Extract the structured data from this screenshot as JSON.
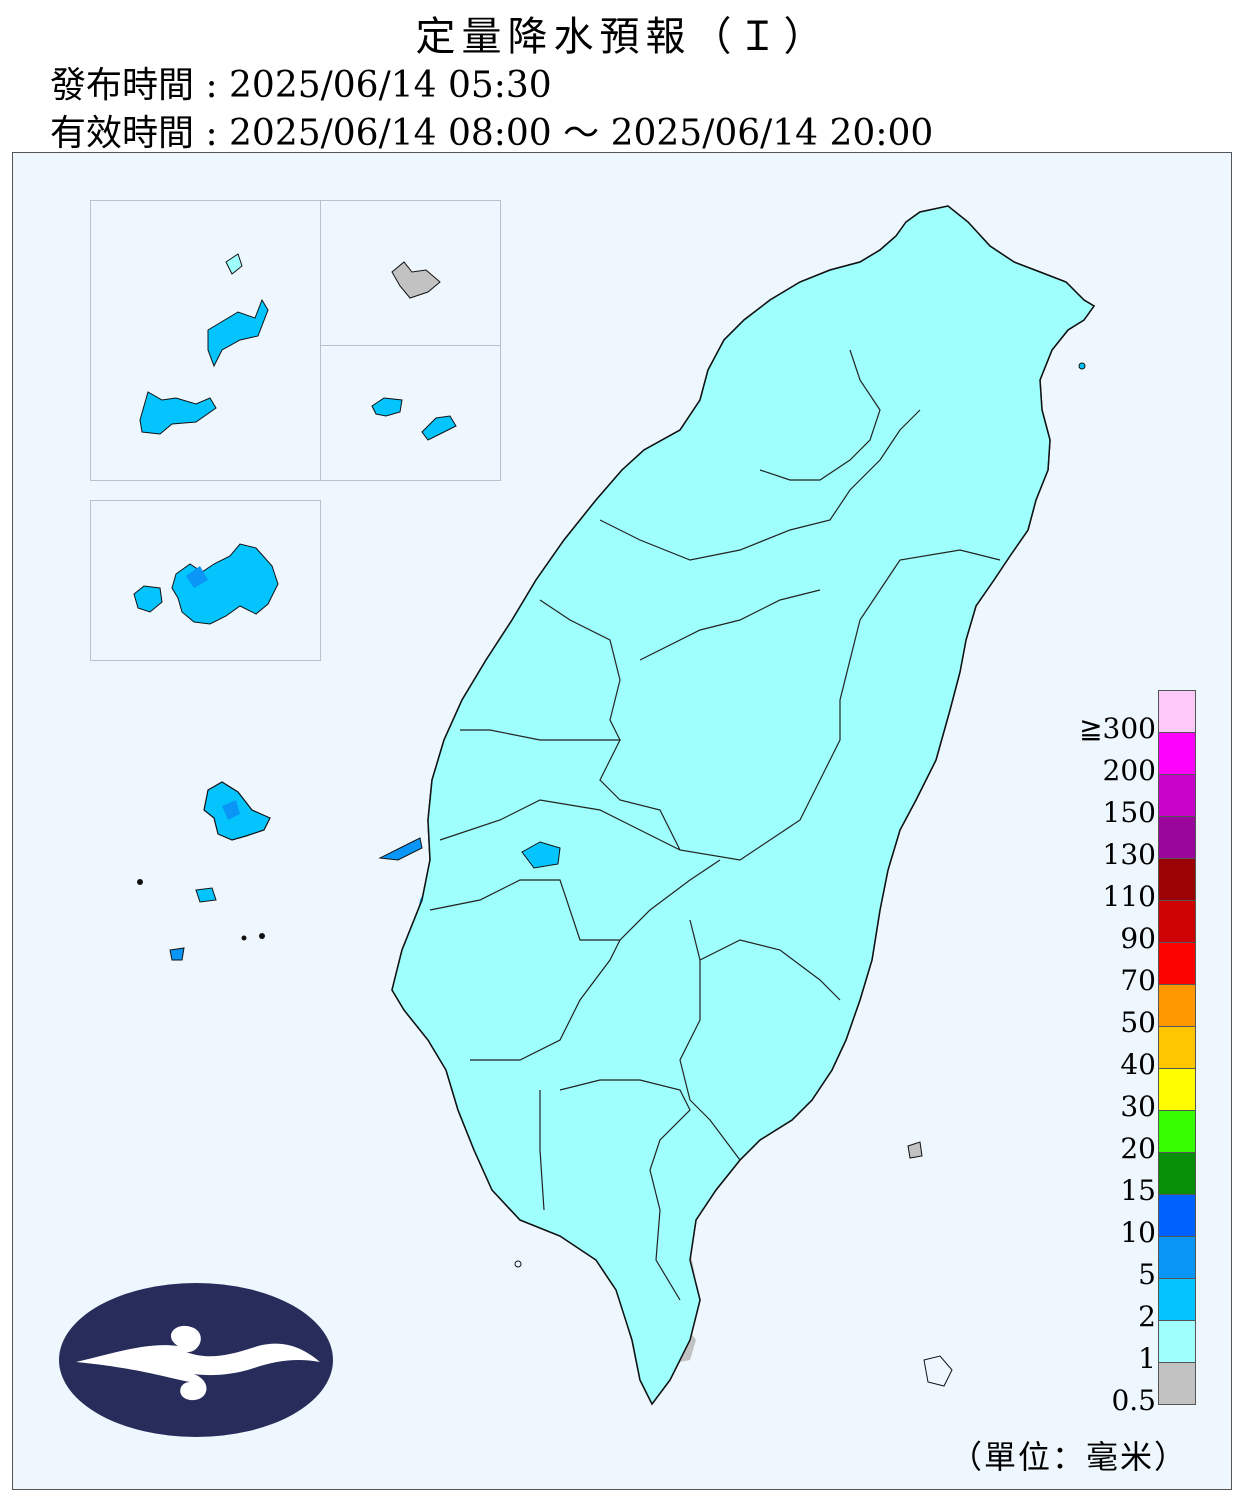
{
  "header": {
    "title": "定量降水預報（Ｉ）",
    "issued": "發布時間 : 2025/06/14 05:30",
    "valid": "有效時間 : 2025/06/14 08:00 ～ 2025/06/14 20:00"
  },
  "legend": {
    "unit": "（單位：毫米）",
    "labels": [
      "≧300",
      "200",
      "150",
      "130",
      "110",
      "90",
      "70",
      "50",
      "40",
      "30",
      "20",
      "15",
      "10",
      "5",
      "2",
      "1",
      "0.5"
    ],
    "colors": [
      "#fdc9f9",
      "#fd03fb",
      "#c803c9",
      "#9a0699",
      "#9b0202",
      "#ce0202",
      "#fd0300",
      "#fe9700",
      "#fec600",
      "#fffd00",
      "#35fe00",
      "#078f07",
      "#0062fe",
      "#0a96f6",
      "#03c4fd",
      "#9efffd",
      "#c2c2c2"
    ]
  },
  "regions": {
    "penghu": "Penghu Islands",
    "kinmen": "Kinmen",
    "matsu": "Matsu Islands",
    "taiwan": "Taiwan main island"
  },
  "colors": {
    "background": "#eef7fd",
    "logo_bg": "#272c5a",
    "logo_fg": "#ffffff",
    "border_lines": "#333333"
  },
  "icons": {
    "logo": "cwa-logo-icon"
  }
}
